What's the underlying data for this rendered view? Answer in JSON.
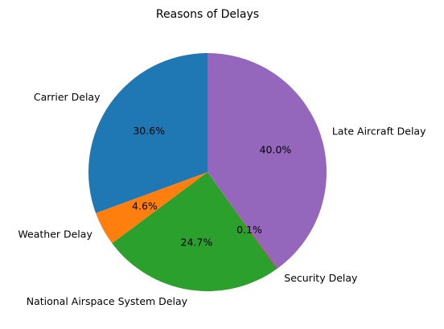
{
  "chart_data": {
    "type": "pie",
    "title": "Reasons of Delays",
    "start_angle_deg": 90,
    "direction": "counterclockwise",
    "slices": [
      {
        "label": "Carrier Delay",
        "value": 30.6,
        "pct_label": "30.6%",
        "color": "#1f77b4"
      },
      {
        "label": "Weather Delay",
        "value": 4.6,
        "pct_label": "4.6%",
        "color": "#ff7f0e"
      },
      {
        "label": "National Airspace System Delay",
        "value": 24.7,
        "pct_label": "24.7%",
        "color": "#2ca02c"
      },
      {
        "label": "Security Delay",
        "value": 0.1,
        "pct_label": "0.1%",
        "color": "#d62728"
      },
      {
        "label": "Late Aircraft Delay",
        "value": 40.0,
        "pct_label": "40.0%",
        "color": "#9467bd"
      }
    ]
  }
}
